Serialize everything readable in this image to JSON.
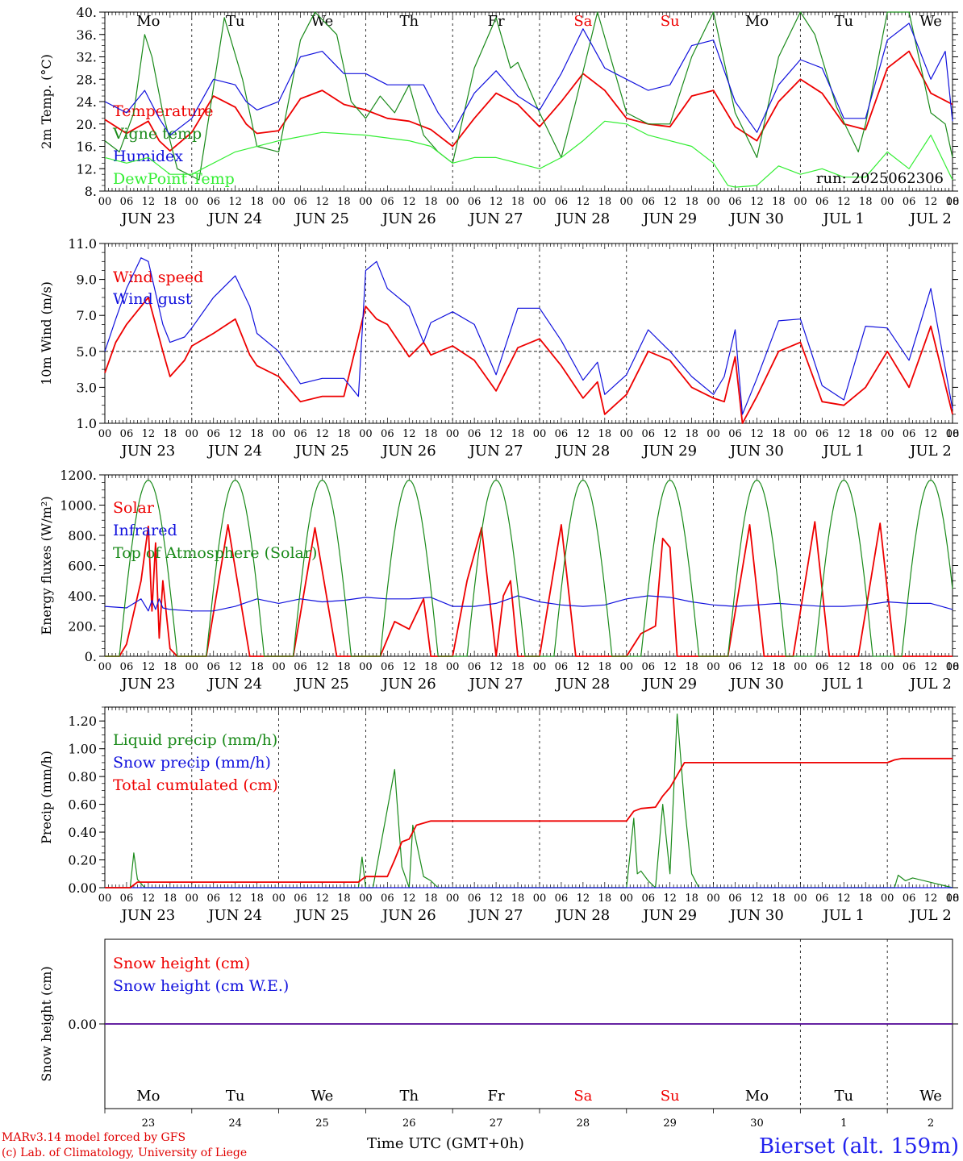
{
  "footer": {
    "model_line": "MARv3.14 model forced by GFS",
    "copyright_line": "(c) Lab. of Climatology, University of Liege",
    "axis_title": "Time UTC (GMT+0h)",
    "station": "Bierset (alt. 159m)"
  },
  "colors": {
    "red": "#ee0000",
    "green": "#1a8a1a",
    "light_green": "#33ee33",
    "blue": "#1111dd",
    "weekend": "#ee0000"
  },
  "days": {
    "dates": [
      "JUN 23",
      "JUN 24",
      "JUN 25",
      "JUN 26",
      "JUN 27",
      "JUN 28",
      "JUN 29",
      "JUN 30",
      "JUL  1",
      "JUL  2"
    ],
    "day_numbers": [
      "23",
      "24",
      "25",
      "26",
      "27",
      "28",
      "29",
      "30",
      "1",
      "2"
    ],
    "weekdays": [
      "Mo",
      "Tu",
      "We",
      "Th",
      "Fr",
      "Sa",
      "Su",
      "Mo",
      "Tu",
      "We"
    ],
    "weekend_weekdays": [
      "Sa",
      "Su"
    ],
    "hour_ticks": [
      "00",
      "06",
      "12",
      "18"
    ],
    "final_hour_tick": "00"
  },
  "chart_data": [
    {
      "type": "line",
      "ylabel": "2m Temp. (°C)",
      "ylim": [
        8,
        40
      ],
      "yticks": [
        "8.",
        "12.",
        "16.",
        "20.",
        "24.",
        "28.",
        "32.",
        "36.",
        "40."
      ],
      "x_unit": "hours from Jun 23 00 UTC",
      "run_label": "run: 2025062306",
      "show_weekdays": true,
      "series": [
        {
          "name": "Temperature",
          "color": "red",
          "x": [
            0,
            6,
            12,
            15,
            18,
            24,
            30,
            36,
            39,
            42,
            48,
            54,
            60,
            66,
            72,
            78,
            84,
            90,
            96,
            102,
            108,
            114,
            120,
            126,
            132,
            138,
            144,
            150,
            156,
            162,
            168,
            174,
            180,
            186,
            192,
            198,
            204,
            210,
            216,
            222,
            228,
            234
          ],
          "y": [
            20.8,
            18.3,
            20.5,
            17,
            15.2,
            18.5,
            25,
            23,
            20,
            18.3,
            18.8,
            24.5,
            26,
            23.5,
            22.5,
            21,
            20.5,
            19,
            16,
            21,
            25.5,
            23.5,
            19.5,
            24,
            29,
            26,
            21,
            20,
            19.5,
            25,
            26,
            19.5,
            17,
            24,
            28,
            25.5,
            20,
            19,
            30,
            33,
            25.5,
            23.5
          ]
        },
        {
          "name": "Vigne temp",
          "color": "green",
          "x": [
            0,
            4,
            8,
            11,
            13,
            16,
            20,
            26,
            33,
            38,
            42,
            48,
            54,
            58,
            64,
            68,
            72,
            76,
            80,
            84,
            88,
            92,
            96,
            102,
            108,
            112,
            114,
            120,
            126,
            130,
            136,
            144,
            150,
            156,
            162,
            168,
            174,
            180,
            186,
            192,
            196,
            202,
            208,
            210,
            216,
            222,
            228,
            232,
            234
          ],
          "y": [
            17,
            15,
            22,
            36,
            32,
            22,
            12,
            10,
            39,
            28,
            16,
            15,
            35,
            40,
            36,
            24,
            21,
            25,
            22,
            27,
            18,
            15,
            13,
            30,
            39,
            30,
            31,
            22,
            14,
            24,
            40,
            22,
            20,
            20,
            32,
            40,
            22,
            14,
            32,
            40,
            36,
            23,
            15,
            20,
            42,
            42,
            22,
            20,
            14
          ]
        },
        {
          "name": "Humidex",
          "color": "blue",
          "x": [
            0,
            6,
            11,
            15,
            18,
            24,
            30,
            36,
            39,
            42,
            48,
            54,
            60,
            66,
            72,
            78,
            84,
            88,
            92,
            96,
            102,
            108,
            114,
            120,
            126,
            132,
            138,
            144,
            150,
            156,
            162,
            168,
            174,
            180,
            186,
            192,
            198,
            204,
            210,
            216,
            222,
            228,
            232,
            234
          ],
          "y": [
            24,
            22,
            26,
            21,
            18,
            21,
            28,
            27,
            24,
            22.5,
            24,
            32,
            33,
            29,
            29,
            27,
            27,
            27,
            22,
            18.5,
            25.5,
            29.5,
            25,
            22.5,
            29,
            37,
            30,
            28,
            26,
            27,
            34,
            35,
            24,
            18.5,
            27,
            31.5,
            30,
            21,
            21,
            35,
            38,
            28,
            33,
            20.5
          ]
        },
        {
          "name": "DewPoint Temp",
          "color": "light_green",
          "x": [
            0,
            6,
            12,
            18,
            24,
            36,
            48,
            60,
            72,
            84,
            90,
            96,
            102,
            108,
            114,
            120,
            126,
            132,
            138,
            144,
            150,
            156,
            162,
            168,
            172,
            174,
            180,
            186,
            192,
            198,
            204,
            210,
            216,
            222,
            228,
            234
          ],
          "y": [
            14,
            13,
            14,
            11,
            11,
            15,
            17,
            18.5,
            18,
            17,
            16,
            13,
            14,
            14,
            13,
            12,
            14,
            17,
            20.5,
            20,
            18,
            17,
            16,
            13,
            9,
            8.7,
            9,
            12.5,
            11,
            12,
            10.5,
            10.5,
            15,
            12,
            18,
            10
          ]
        }
      ]
    },
    {
      "type": "line",
      "ylabel": "10m Wind (m/s)",
      "ylim": [
        1.0,
        11.0
      ],
      "yticks": [
        "1.0",
        "3.0",
        "5.0",
        "7.0",
        "9.0",
        "11.0"
      ],
      "x_unit": "hours from Jun 23 00 UTC",
      "reference_line": 5.0,
      "show_weekdays": false,
      "series": [
        {
          "name": "Wind speed",
          "color": "red",
          "x": [
            0,
            3,
            6,
            12,
            16,
            18,
            22,
            24,
            30,
            36,
            40,
            42,
            48,
            54,
            60,
            66,
            72,
            75,
            78,
            84,
            88,
            90,
            96,
            102,
            108,
            114,
            120,
            126,
            132,
            136,
            138,
            144,
            150,
            156,
            162,
            168,
            171,
            174,
            176,
            180,
            186,
            192,
            198,
            204,
            210,
            216,
            222,
            228,
            234
          ],
          "y": [
            3.8,
            5.5,
            6.5,
            8,
            5,
            3.6,
            4.5,
            5.3,
            6,
            6.8,
            4.8,
            4.2,
            3.6,
            2.2,
            2.5,
            2.5,
            7.5,
            6.8,
            6.5,
            4.7,
            5.5,
            4.8,
            5.3,
            4.5,
            2.8,
            5.2,
            5.7,
            4.2,
            2.4,
            3.3,
            1.5,
            2.6,
            5,
            4.5,
            3.0,
            2.4,
            2.2,
            4.7,
            1.0,
            2.5,
            5.0,
            5.5,
            2.2,
            2.0,
            3.0,
            5.0,
            3.0,
            6.4,
            1.5
          ]
        },
        {
          "name": "Wind gust",
          "color": "blue",
          "x": [
            0,
            3,
            6,
            10,
            12,
            16,
            18,
            22,
            24,
            30,
            36,
            40,
            42,
            48,
            54,
            60,
            66,
            70,
            72,
            75,
            78,
            84,
            88,
            90,
            96,
            102,
            108,
            114,
            120,
            126,
            132,
            136,
            138,
            144,
            150,
            156,
            162,
            168,
            171,
            174,
            176,
            180,
            186,
            192,
            198,
            204,
            210,
            216,
            222,
            228,
            234
          ],
          "y": [
            5,
            6.8,
            8.5,
            10.2,
            10,
            6.5,
            5.5,
            5.8,
            6.3,
            8,
            9.2,
            7.5,
            6,
            5,
            3.2,
            3.5,
            3.5,
            2.5,
            9.5,
            10,
            8.5,
            7.5,
            5.5,
            6.6,
            7.2,
            6.5,
            3.7,
            7.4,
            7.4,
            5.6,
            3.4,
            4.4,
            2.6,
            3.7,
            6.2,
            5.0,
            3.6,
            2.6,
            3.6,
            6.2,
            1.5,
            3.5,
            6.7,
            6.8,
            3.1,
            2.3,
            6.4,
            6.3,
            4.5,
            8.5,
            1.8
          ]
        }
      ]
    },
    {
      "type": "line",
      "ylabel": "Energy fluxes (W/m²)",
      "ylim": [
        0,
        1200
      ],
      "yticks": [
        "0.",
        "200.",
        "400.",
        "600.",
        "800.",
        "1000.",
        "1200."
      ],
      "x_unit": "hours from Jun 23 00 UTC",
      "show_weekdays": false,
      "series": [
        {
          "name": "Solar",
          "color": "red",
          "description_free_values": true,
          "x": [
            0,
            4,
            6,
            10,
            12,
            13,
            14,
            15,
            16,
            18,
            20,
            22,
            28,
            34,
            40,
            44,
            52,
            58,
            64,
            68,
            76,
            80,
            84,
            88,
            90,
            92,
            96,
            100,
            104,
            108,
            110,
            112,
            114,
            118,
            120,
            126,
            130,
            134,
            140,
            144,
            148,
            152,
            154,
            156,
            158,
            160,
            164,
            168,
            172,
            178,
            182,
            186,
            190,
            196,
            200,
            204,
            208,
            214,
            218,
            222,
            226,
            230,
            234
          ],
          "y": [
            0,
            0,
            80,
            500,
            860,
            300,
            750,
            120,
            500,
            50,
            0,
            0,
            0,
            870,
            0,
            0,
            0,
            850,
            0,
            0,
            0,
            230,
            180,
            380,
            0,
            0,
            0,
            500,
            850,
            0,
            400,
            500,
            0,
            0,
            0,
            870,
            0,
            0,
            0,
            0,
            150,
            200,
            780,
            720,
            0,
            0,
            0,
            0,
            0,
            870,
            0,
            0,
            0,
            890,
            0,
            0,
            0,
            880,
            0,
            0,
            0,
            0,
            0
          ]
        },
        {
          "name": "Infrared",
          "color": "blue",
          "x": [
            0,
            6,
            10,
            12,
            13,
            14,
            15,
            16,
            18,
            24,
            30,
            36,
            42,
            48,
            54,
            60,
            66,
            72,
            78,
            84,
            90,
            96,
            102,
            108,
            114,
            120,
            126,
            132,
            138,
            144,
            150,
            156,
            162,
            168,
            174,
            180,
            186,
            192,
            198,
            204,
            210,
            216,
            222,
            228,
            234
          ],
          "y": [
            330,
            320,
            380,
            300,
            370,
            310,
            380,
            320,
            310,
            300,
            300,
            330,
            380,
            350,
            380,
            360,
            370,
            390,
            380,
            380,
            390,
            330,
            330,
            350,
            400,
            360,
            340,
            330,
            340,
            380,
            400,
            390,
            360,
            340,
            330,
            340,
            350,
            340,
            330,
            330,
            340,
            360,
            350,
            350,
            310
          ]
        },
        {
          "name": "Top of Atmosphere (Solar)",
          "color": "green",
          "peak": 1165,
          "sunrise_hour": 4,
          "sunset_hour": 20
        }
      ]
    },
    {
      "type": "line",
      "ylabel": "Precip (mm/h)",
      "ylim": [
        0,
        1.3
      ],
      "yticks": [
        "0.00",
        "0.20",
        "0.40",
        "0.60",
        "0.80",
        "1.00",
        "1.20"
      ],
      "x_unit": "hours from Jun 23 00 UTC",
      "show_weekdays": false,
      "series": [
        {
          "name": "Liquid precip (mm/h)",
          "color": "green",
          "x": [
            0,
            7,
            8,
            9,
            11,
            24,
            48,
            70,
            71,
            72,
            74,
            80,
            82,
            84,
            85,
            88,
            90,
            92,
            96,
            144,
            146,
            147,
            148,
            150,
            152,
            154,
            156,
            158,
            160,
            162,
            164,
            165,
            200,
            218,
            219,
            221,
            223,
            234
          ],
          "y": [
            0,
            0,
            0.25,
            0.06,
            0,
            0,
            0,
            0,
            0.22,
            0,
            0,
            0.85,
            0.15,
            0,
            0.45,
            0.08,
            0.05,
            0,
            0,
            0,
            0.5,
            0.1,
            0.12,
            0.05,
            0,
            0.6,
            0.1,
            1.25,
            0.6,
            0.1,
            0,
            0,
            0,
            0,
            0.09,
            0.05,
            0.07,
            0
          ]
        },
        {
          "name": "Snow precip (mm/h)",
          "color": "blue",
          "x": [
            0,
            234
          ],
          "y": [
            0,
            0
          ]
        },
        {
          "name": "Total cumulated (cm)",
          "color": "red",
          "x": [
            0,
            7,
            9,
            70,
            72,
            78,
            80,
            82,
            84,
            86,
            90,
            144,
            146,
            148,
            152,
            154,
            156,
            160,
            162,
            216,
            218,
            220,
            234
          ],
          "y": [
            0,
            0,
            0.04,
            0.04,
            0.08,
            0.08,
            0.2,
            0.33,
            0.35,
            0.45,
            0.48,
            0.48,
            0.55,
            0.57,
            0.58,
            0.66,
            0.72,
            0.9,
            0.9,
            0.9,
            0.92,
            0.93,
            0.93
          ]
        }
      ]
    },
    {
      "type": "line",
      "ylabel": "Snow height (cm)",
      "ylim": [
        -1,
        1
      ],
      "yticks": [
        "0.00"
      ],
      "x_unit": "hours from Jun 23 00 UTC",
      "show_weekdays": true,
      "series": [
        {
          "name": "Snow height (cm)",
          "color": "red",
          "x": [
            0,
            234
          ],
          "y": [
            0,
            0
          ]
        },
        {
          "name": "Snow height (cm W.E.)",
          "color": "blue",
          "x": [
            0,
            234
          ],
          "y": [
            0,
            0
          ]
        }
      ]
    }
  ]
}
